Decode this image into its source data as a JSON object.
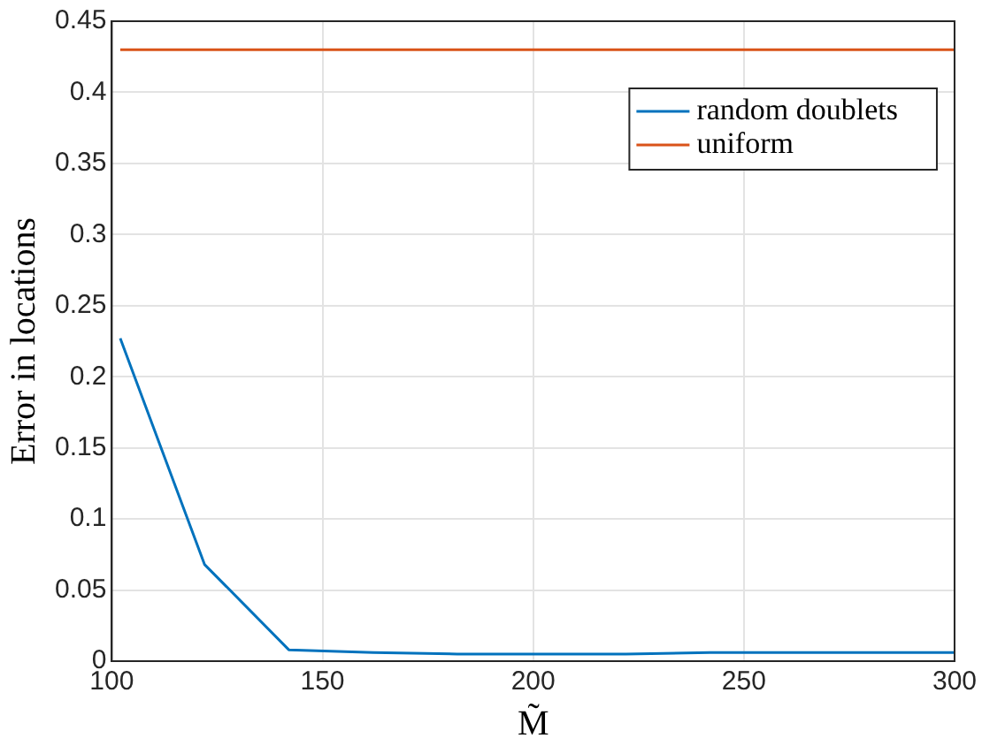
{
  "chart_data": {
    "type": "line",
    "xlabel": "M̃",
    "ylabel": "Error in locations",
    "xlim": [
      100,
      300
    ],
    "xticks": [
      100,
      150,
      200,
      250,
      300
    ],
    "ylim": [
      0,
      0.45
    ],
    "yticks": [
      0,
      0.05,
      0.1,
      0.15,
      0.2,
      0.25,
      0.3,
      0.35,
      0.4,
      0.45
    ],
    "grid": true,
    "legend": "top right",
    "series": [
      {
        "name": "random doublets",
        "color": "#0072bd",
        "x": [
          102,
          122,
          142,
          162,
          182,
          202,
          222,
          242,
          262,
          282,
          300
        ],
        "values": [
          0.227,
          0.068,
          0.008,
          0.006,
          0.005,
          0.005,
          0.005,
          0.006,
          0.006,
          0.006,
          0.006
        ]
      },
      {
        "name": "uniform",
        "color": "#d95319",
        "x": [
          102,
          300
        ],
        "values": [
          0.43,
          0.43
        ]
      }
    ]
  }
}
